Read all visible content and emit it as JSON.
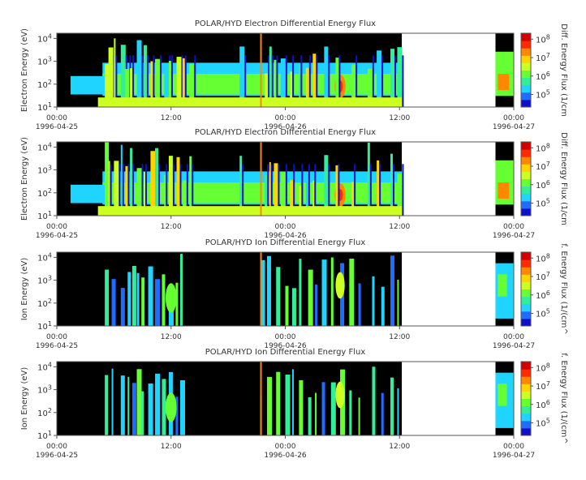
{
  "figure": {
    "x_tick_times": [
      "00:00",
      "12:00",
      "00:00",
      "12:00",
      "00:00"
    ],
    "x_tick_dates": [
      "1996-04-25",
      "",
      "1996-04-26",
      "",
      "1996-04-27"
    ]
  },
  "colorbar": {
    "tick_labels": [
      "10^5",
      "10^6",
      "10^7",
      "10^8"
    ],
    "colors": [
      "#1010c8",
      "#1f6cff",
      "#1fd4ff",
      "#33ee99",
      "#66ff33",
      "#ccff22",
      "#ffd400",
      "#ff8800",
      "#ff2a00",
      "#d40000"
    ]
  },
  "panels": [
    {
      "title": "POLAR/HYD  Electron Differential Energy Flux",
      "ylabel": "Electron Energy (eV)",
      "cbar_label": "Diff. Energy Flux (1/cm",
      "y_ticks": [
        "10^1",
        "10^2",
        "10^3",
        "10^4"
      ]
    },
    {
      "title": "POLAR/HYD  Electron Differential Energy Flux",
      "ylabel": "Electron Energy (eV)",
      "cbar_label": "Diff. Energy Flux (1/cm",
      "y_ticks": [
        "10^1",
        "10^2",
        "10^3",
        "10^4"
      ]
    },
    {
      "title": "POLAR/HYD  Ion Differential Energy Flux",
      "ylabel": "Ion Energy (eV)",
      "cbar_label": "f. Energy Flux (1/(cm^",
      "y_ticks": [
        "10^1",
        "10^2",
        "10^3",
        "10^4"
      ]
    },
    {
      "title": "POLAR/HYD  Ion Differential Energy Flux",
      "ylabel": "Ion Energy (eV)",
      "cbar_label": "f. Energy Flux (1/(cm^",
      "y_ticks": [
        "10^1",
        "10^2",
        "10^3",
        "10^4"
      ]
    }
  ],
  "chart_data": [
    {
      "type": "heatmap",
      "title": "POLAR/HYD  Electron Differential Energy Flux",
      "ylabel": "Electron Energy (eV)",
      "y_scale": "log",
      "ylim_eV": [
        10,
        20000
      ],
      "x_range": [
        "1996-04-25 00:00",
        "1996-04-27 00:00"
      ],
      "data_gaps": [
        [
          "1996-04-26 12:00",
          "1996-04-26 21:00"
        ]
      ],
      "colorbar_range": [
        20000,
        200000000
      ]
    },
    {
      "type": "heatmap",
      "title": "POLAR/HYD  Electron Differential Energy Flux",
      "ylabel": "Electron Energy (eV)",
      "y_scale": "log",
      "ylim_eV": [
        10,
        20000
      ],
      "x_range": [
        "1996-04-25 00:00",
        "1996-04-27 00:00"
      ],
      "data_gaps": [
        [
          "1996-04-26 12:00",
          "1996-04-26 21:00"
        ]
      ],
      "colorbar_range": [
        20000,
        200000000
      ]
    },
    {
      "type": "heatmap",
      "title": "POLAR/HYD  Ion Differential Energy Flux",
      "ylabel": "Ion Energy (eV)",
      "y_scale": "log",
      "ylim_eV": [
        10,
        20000
      ],
      "x_range": [
        "1996-04-25 00:00",
        "1996-04-27 00:00"
      ],
      "data_gaps": [
        [
          "1996-04-26 12:00",
          "1996-04-26 21:00"
        ]
      ],
      "colorbar_range": [
        20000,
        200000000
      ]
    },
    {
      "type": "heatmap",
      "title": "POLAR/HYD  Ion Differential Energy Flux",
      "ylabel": "Ion Energy (eV)",
      "y_scale": "log",
      "ylim_eV": [
        10,
        20000
      ],
      "x_range": [
        "1996-04-25 00:00",
        "1996-04-27 00:00"
      ],
      "data_gaps": [
        [
          "1996-04-26 12:00",
          "1996-04-26 21:00"
        ]
      ],
      "colorbar_range": [
        20000,
        200000000
      ]
    }
  ]
}
